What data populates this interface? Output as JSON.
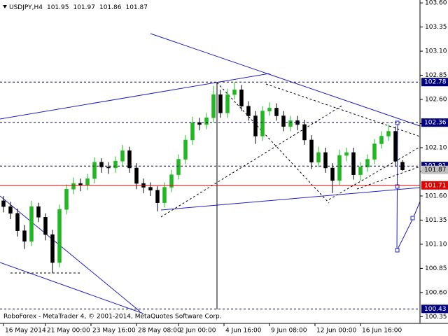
{
  "chart_data": {
    "type": "candlestick",
    "symbol": "USDJPY,H4",
    "footer": "RoboForex - MetaTrader 4, © 2001-2014, MetaQuotes Software Corp.",
    "up_color": "#22b822",
    "down_color": "#000000",
    "x": [
      0,
      1,
      2,
      3,
      4,
      5,
      6,
      7,
      8,
      9,
      10,
      11,
      12,
      13,
      14,
      15,
      16,
      17,
      18,
      19,
      20,
      21,
      22,
      23,
      24,
      25,
      26,
      27,
      28,
      29,
      30,
      31,
      32,
      33,
      34,
      35,
      36,
      37,
      38,
      39,
      40,
      41,
      42,
      43,
      44,
      45,
      46,
      47,
      48,
      49,
      50,
      51,
      52,
      53,
      54,
      55,
      56,
      57
    ],
    "open": [
      101.55,
      101.49,
      101.42,
      101.24,
      101.13,
      101.49,
      101.38,
      101.2,
      100.91,
      101.46,
      101.67,
      101.73,
      101.71,
      101.78,
      101.95,
      101.9,
      101.89,
      101.96,
      102.07,
      101.89,
      101.73,
      101.69,
      101.66,
      101.53,
      101.69,
      101.82,
      101.98,
      102.18,
      102.36,
      102.34,
      102.41,
      102.65,
      102.46,
      102.65,
      102.7,
      102.53,
      102.43,
      102.22,
      102.48,
      102.51,
      102.43,
      102.32,
      102.38,
      102.34,
      102.18,
      101.95,
      102.05,
      101.89,
      101.76,
      102.02,
      102.05,
      101.82,
      101.9,
      101.98,
      102.14,
      102.22,
      102.27,
      101.95
    ],
    "high": [
      101.6,
      101.54,
      101.47,
      101.3,
      101.55,
      101.53,
      101.42,
      101.25,
      101.51,
      101.72,
      101.79,
      101.78,
      101.83,
      102.0,
      101.99,
      101.95,
      102.01,
      102.13,
      102.11,
      101.94,
      101.78,
      101.74,
      101.7,
      101.74,
      101.87,
      102.03,
      102.23,
      102.42,
      102.41,
      102.46,
      102.74,
      102.7,
      102.71,
      102.78,
      102.75,
      102.58,
      102.48,
      102.53,
      102.57,
      102.56,
      102.48,
      102.43,
      102.43,
      102.39,
      102.23,
      102.11,
      102.1,
      101.94,
      102.08,
      102.1,
      102.1,
      101.95,
      102.03,
      102.19,
      102.27,
      102.34,
      102.32,
      101.97
    ],
    "low": [
      101.43,
      101.36,
      101.18,
      101.05,
      101.08,
      101.33,
      101.14,
      100.8,
      100.86,
      101.41,
      101.62,
      101.65,
      101.66,
      101.73,
      101.84,
      101.83,
      101.84,
      101.91,
      101.84,
      101.67,
      101.63,
      101.6,
      101.44,
      101.48,
      101.64,
      101.77,
      101.93,
      102.13,
      102.28,
      102.29,
      102.36,
      102.41,
      102.41,
      102.6,
      102.48,
      102.38,
      102.14,
      102.17,
      102.43,
      102.38,
      102.27,
      102.27,
      102.28,
      102.13,
      101.88,
      101.9,
      101.84,
      101.63,
      101.71,
      101.96,
      101.77,
      101.76,
      101.85,
      101.93,
      102.09,
      102.17,
      101.91,
      101.86
    ],
    "close": [
      101.49,
      101.42,
      101.24,
      101.13,
      101.49,
      101.38,
      101.2,
      100.91,
      101.46,
      101.67,
      101.73,
      101.71,
      101.78,
      101.95,
      101.9,
      101.89,
      101.96,
      102.07,
      101.89,
      101.73,
      101.69,
      101.66,
      101.53,
      101.69,
      101.82,
      101.98,
      102.18,
      102.36,
      102.34,
      102.41,
      102.65,
      102.46,
      102.65,
      102.7,
      102.53,
      102.43,
      102.22,
      102.48,
      102.51,
      102.43,
      102.32,
      102.38,
      102.34,
      102.18,
      101.95,
      102.05,
      101.89,
      101.76,
      102.02,
      102.05,
      101.82,
      101.9,
      101.98,
      102.14,
      102.22,
      102.27,
      101.96,
      101.87
    ],
    "xlim": [
      -0.5,
      59.5
    ],
    "xticks": [
      {
        "value": 0,
        "label": "16 May 2014"
      },
      {
        "value": 6,
        "label": "21 May 00:00"
      },
      {
        "value": 12.5,
        "label": "23 May 16:00"
      },
      {
        "value": 19,
        "label": "28 May 08:00"
      },
      {
        "value": 25,
        "label": "2 Jun 00:00"
      },
      {
        "value": 31.5,
        "label": "4 Jun 16:00"
      },
      {
        "value": 38,
        "label": "9 Jun 08:00"
      },
      {
        "value": 44.5,
        "label": "12 Jun 00:00"
      },
      {
        "value": 51,
        "label": "16 Jun 16:00"
      }
    ],
    "ylim": [
      100.28,
      103.63
    ],
    "yticks": [
      {
        "value": 103.6,
        "label": "103.60"
      },
      103.35,
      {
        "value": 103.1,
        "label": "103.10"
      },
      102.85,
      {
        "value": 102.6,
        "label": "102.60"
      },
      102.35,
      {
        "value": 102.1,
        "label": "102.10"
      },
      101.85,
      {
        "value": 101.6,
        "label": "101.60"
      },
      101.35,
      {
        "value": 101.1,
        "label": "101.10"
      },
      100.85,
      {
        "value": 100.6,
        "label": "100.60"
      },
      100.35
    ],
    "levels": [
      {
        "value": 102.78,
        "color": "#000080"
      },
      {
        "value": 102.36,
        "color": "#000080"
      },
      {
        "value": 101.91,
        "color": "#000080"
      },
      {
        "value": 101.87,
        "color": "#c0c0c0"
      },
      {
        "value": 101.71,
        "color": "#e00000"
      },
      {
        "value": 100.43,
        "color": "#000080"
      }
    ]
  }
}
